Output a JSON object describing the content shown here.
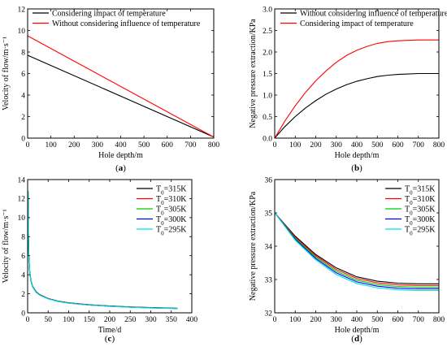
{
  "chart_data": [
    {
      "panel_label": "(a)",
      "type": "line",
      "xlabel": "Hole depth/m",
      "ylabel": "Velocity of flow/m·s⁻¹",
      "xlim": [
        0,
        800
      ],
      "ylim": [
        0,
        12
      ],
      "xticks": [
        0,
        100,
        200,
        300,
        400,
        500,
        600,
        700,
        800
      ],
      "yticks": [
        0,
        2,
        4,
        6,
        8,
        10,
        12
      ],
      "legend_position": "top-left",
      "series": [
        {
          "name": "Considering impact of temperature",
          "color": "#000000",
          "x": [
            0,
            800
          ],
          "y": [
            7.7,
            0.1
          ]
        },
        {
          "name": "Without considering influence of temperature",
          "color": "#ff0000",
          "x": [
            0,
            800
          ],
          "y": [
            9.5,
            0.1
          ]
        }
      ]
    },
    {
      "panel_label": "(b)",
      "type": "line",
      "xlabel": "Hole depth/m",
      "ylabel": "Negative pressure extraction/KPa",
      "xlim": [
        0,
        800
      ],
      "ylim": [
        0,
        3.0
      ],
      "xticks": [
        0,
        100,
        200,
        300,
        400,
        500,
        600,
        700,
        800
      ],
      "yticks": [
        0.0,
        0.5,
        1.0,
        1.5,
        2.0,
        2.5,
        3.0
      ],
      "legend_position": "top-left",
      "series": [
        {
          "name": "Without considering influence of temperature",
          "color": "#000000",
          "x": [
            0,
            50,
            100,
            150,
            200,
            250,
            300,
            350,
            400,
            450,
            500,
            550,
            600,
            650,
            700,
            750,
            800
          ],
          "y": [
            0,
            0.27,
            0.5,
            0.7,
            0.87,
            1.02,
            1.14,
            1.24,
            1.32,
            1.38,
            1.43,
            1.46,
            1.48,
            1.49,
            1.5,
            1.5,
            1.5
          ]
        },
        {
          "name": "Considering impact of temperature",
          "color": "#ff0000",
          "x": [
            0,
            50,
            100,
            150,
            200,
            250,
            300,
            350,
            400,
            450,
            500,
            550,
            600,
            650,
            700,
            750,
            800
          ],
          "y": [
            0,
            0.4,
            0.75,
            1.06,
            1.33,
            1.56,
            1.76,
            1.92,
            2.04,
            2.13,
            2.2,
            2.24,
            2.26,
            2.27,
            2.28,
            2.28,
            2.28
          ]
        }
      ]
    },
    {
      "panel_label": "(c)",
      "type": "line",
      "xlabel": "Time/d",
      "ylabel": "Velocity of flow/m·s⁻¹",
      "xlim": [
        0,
        400
      ],
      "ylim": [
        0,
        14
      ],
      "xticks": [
        0,
        50,
        100,
        150,
        200,
        250,
        300,
        350,
        400
      ],
      "yticks": [
        0,
        2,
        4,
        6,
        8,
        10,
        12,
        14
      ],
      "legend_position": "top-right",
      "series": [
        {
          "name": "T0=315K",
          "sub": "0",
          "base": "T",
          "suffix": "=315K",
          "color": "#000000",
          "x": [
            1,
            2,
            3,
            5,
            8,
            12,
            20,
            30,
            50,
            75,
            100,
            150,
            200,
            250,
            300,
            365
          ],
          "y": [
            12.8,
            8.0,
            6.0,
            4.4,
            3.4,
            2.8,
            2.25,
            1.9,
            1.5,
            1.22,
            1.05,
            0.85,
            0.72,
            0.62,
            0.55,
            0.48
          ]
        },
        {
          "name": "T0=310K",
          "sub": "0",
          "base": "T",
          "suffix": "=310K",
          "color": "#ff0000",
          "x": [
            1,
            2,
            3,
            5,
            8,
            12,
            20,
            30,
            50,
            75,
            100,
            150,
            200,
            250,
            300,
            365
          ],
          "y": [
            12.8,
            7.98,
            5.98,
            4.38,
            3.38,
            2.78,
            2.23,
            1.88,
            1.49,
            1.21,
            1.04,
            0.84,
            0.71,
            0.61,
            0.54,
            0.47
          ]
        },
        {
          "name": "T0=305K",
          "sub": "0",
          "base": "T",
          "suffix": "=305K",
          "color": "#00cc00",
          "x": [
            1,
            2,
            3,
            5,
            8,
            12,
            20,
            30,
            50,
            75,
            100,
            150,
            200,
            250,
            300,
            365
          ],
          "y": [
            12.8,
            7.96,
            5.96,
            4.36,
            3.36,
            2.76,
            2.21,
            1.86,
            1.48,
            1.2,
            1.03,
            0.83,
            0.7,
            0.6,
            0.53,
            0.46
          ]
        },
        {
          "name": "T0=300K",
          "sub": "0",
          "base": "T",
          "suffix": "=300K",
          "color": "#0000ff",
          "x": [
            1,
            2,
            3,
            5,
            8,
            12,
            20,
            30,
            50,
            75,
            100,
            150,
            200,
            250,
            300,
            365
          ],
          "y": [
            12.8,
            7.94,
            5.94,
            4.34,
            3.34,
            2.74,
            2.19,
            1.85,
            1.47,
            1.19,
            1.02,
            0.82,
            0.69,
            0.59,
            0.52,
            0.45
          ]
        },
        {
          "name": "T0=295K",
          "sub": "0",
          "base": "T",
          "suffix": "=295K",
          "color": "#00e0e0",
          "x": [
            1,
            2,
            3,
            5,
            8,
            12,
            20,
            30,
            50,
            75,
            100,
            150,
            200,
            250,
            300,
            365
          ],
          "y": [
            12.8,
            7.92,
            5.92,
            4.32,
            3.32,
            2.72,
            2.17,
            1.84,
            1.46,
            1.18,
            1.01,
            0.81,
            0.68,
            0.58,
            0.51,
            0.44
          ]
        }
      ]
    },
    {
      "panel_label": "(d)",
      "type": "line",
      "xlabel": "Hole depth/m",
      "ylabel": "Negative pressure extraction/KPa",
      "xlim": [
        0,
        800
      ],
      "ylim": [
        32,
        36
      ],
      "xticks": [
        0,
        100,
        200,
        300,
        400,
        500,
        600,
        700,
        800
      ],
      "yticks": [
        32,
        33,
        34,
        35,
        36
      ],
      "legend_position": "top-right",
      "series": [
        {
          "name": "T0=315K",
          "sub": "0",
          "base": "T",
          "suffix": "=315K",
          "color": "#000000",
          "x": [
            0,
            100,
            200,
            300,
            400,
            500,
            600,
            700,
            800
          ],
          "y": [
            35.0,
            34.3,
            33.75,
            33.35,
            33.08,
            32.95,
            32.89,
            32.87,
            32.87
          ]
        },
        {
          "name": "T0=310K",
          "sub": "0",
          "base": "T",
          "suffix": "=310K",
          "color": "#ff0000",
          "x": [
            0,
            100,
            200,
            300,
            400,
            500,
            600,
            700,
            800
          ],
          "y": [
            35.0,
            34.27,
            33.71,
            33.3,
            33.03,
            32.9,
            32.84,
            32.82,
            32.82
          ]
        },
        {
          "name": "T0=305K",
          "sub": "0",
          "base": "T",
          "suffix": "=305K",
          "color": "#00cc00",
          "x": [
            0,
            100,
            200,
            300,
            400,
            500,
            600,
            700,
            800
          ],
          "y": [
            35.0,
            34.24,
            33.67,
            33.25,
            32.98,
            32.85,
            32.79,
            32.77,
            32.77
          ]
        },
        {
          "name": "T0=300K",
          "sub": "0",
          "base": "T",
          "suffix": "=300K",
          "color": "#0000ff",
          "x": [
            0,
            100,
            200,
            300,
            400,
            500,
            600,
            700,
            800
          ],
          "y": [
            35.0,
            34.21,
            33.63,
            33.2,
            32.93,
            32.8,
            32.74,
            32.72,
            32.72
          ]
        },
        {
          "name": "T0=295K",
          "sub": "0",
          "base": "T",
          "suffix": "=295K",
          "color": "#00e0e0",
          "x": [
            0,
            100,
            200,
            300,
            400,
            500,
            600,
            700,
            800
          ],
          "y": [
            35.0,
            34.18,
            33.59,
            33.15,
            32.88,
            32.75,
            32.69,
            32.67,
            32.67
          ]
        }
      ]
    }
  ]
}
